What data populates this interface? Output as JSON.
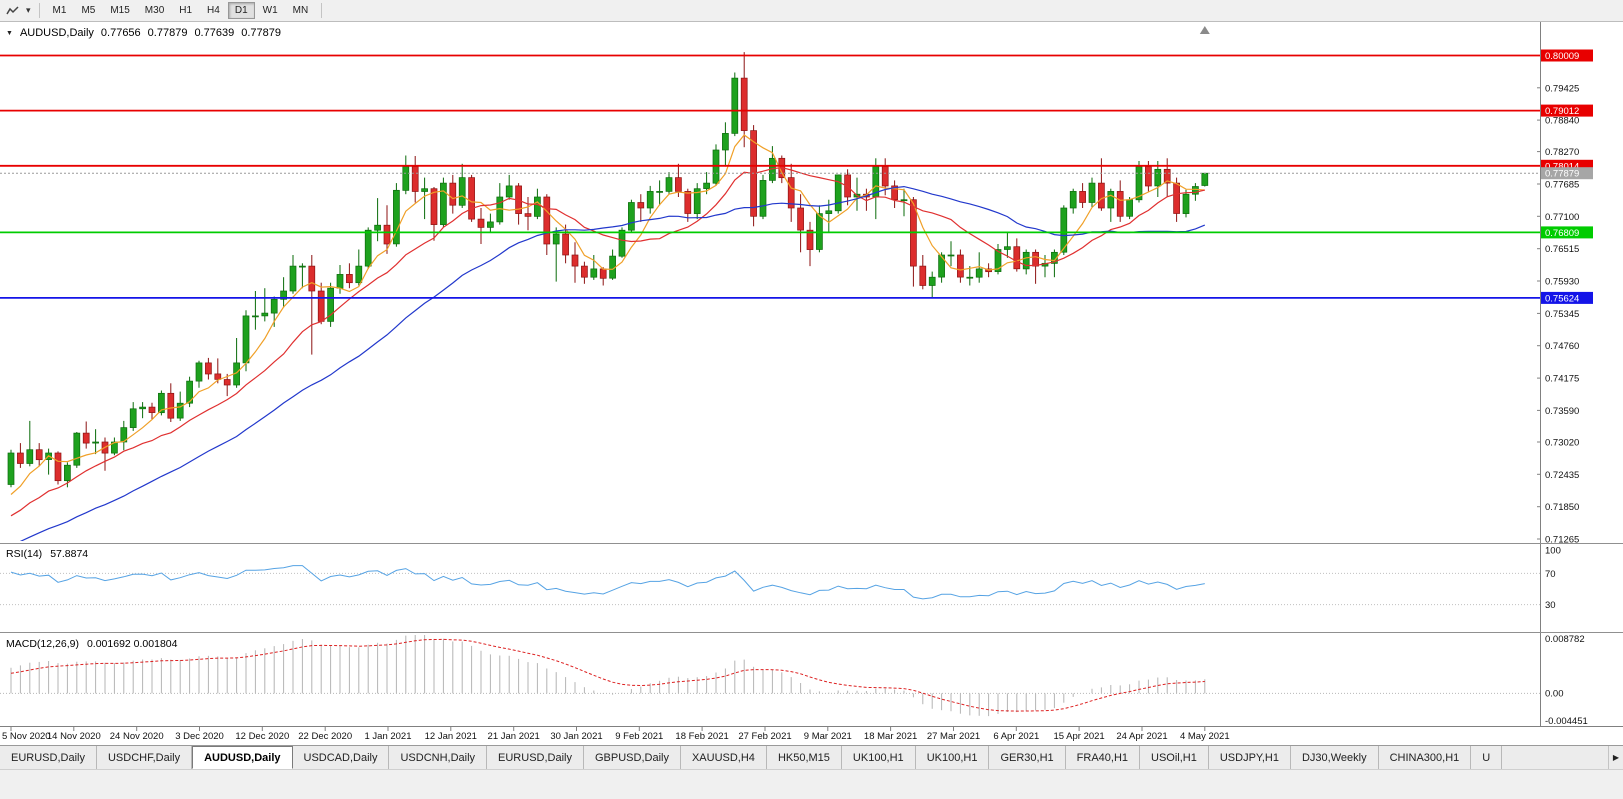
{
  "toolbar": {
    "periods": [
      "M1",
      "M5",
      "M15",
      "M30",
      "H1",
      "H4",
      "D1",
      "W1",
      "MN"
    ],
    "active_period": "D1"
  },
  "chart": {
    "header": {
      "symbol": "AUDUSD,Daily",
      "open": "0.77656",
      "high": "0.77879",
      "low": "0.77639",
      "close": "0.77879"
    }
  },
  "chart_data": {
    "type": "candlestick",
    "symbol": "AUDUSD",
    "timeframe": "Daily",
    "title": "AUDUSD,Daily",
    "last_ohlc": {
      "open": 0.77656,
      "high": 0.77879,
      "low": 0.77639,
      "close": 0.77879
    },
    "y_axis": {
      "min": 0.71247,
      "max": 0.8018,
      "tick_labels": [
        "0.79425",
        "0.78840",
        "0.78270",
        "0.77685",
        "0.77100",
        "0.76515",
        "0.75930",
        "0.75345",
        "0.74760",
        "0.74175",
        "0.73590",
        "0.73020",
        "0.72435",
        "0.71850",
        "0.71265"
      ]
    },
    "x_tick_labels": [
      "5 Nov 2020",
      "14 Nov 2020",
      "24 Nov 2020",
      "3 Dec 2020",
      "12 Dec 2020",
      "22 Dec 2020",
      "1 Jan 2021",
      "12 Jan 2021",
      "21 Jan 2021",
      "30 Jan 2021",
      "9 Feb 2021",
      "18 Feb 2021",
      "27 Feb 2021",
      "9 Mar 2021",
      "18 Mar 2021",
      "27 Mar 2021",
      "6 Apr 2021",
      "15 Apr 2021",
      "24 Apr 2021",
      "4 May 2021"
    ],
    "current_price": {
      "price": 0.77879,
      "label": "0.77879",
      "tag_color": "#a6a6a6",
      "line_color": "#9a9a9a"
    },
    "horizontal_lines": [
      {
        "name": "resistance-1",
        "price": 0.80009,
        "label": "0.80009",
        "color": "#e80000"
      },
      {
        "name": "resistance-2",
        "price": 0.79012,
        "label": "0.79012",
        "color": "#e80000"
      },
      {
        "name": "resistance-3",
        "price": 0.78014,
        "label": "0.78014",
        "color": "#e80000"
      },
      {
        "name": "support-green",
        "price": 0.76809,
        "label": "0.76809",
        "color": "#00cc00"
      },
      {
        "name": "support-blue",
        "price": 0.75624,
        "label": "0.75624",
        "color": "#1414e8"
      }
    ],
    "overlays": {
      "moving_averages": [
        {
          "name": "ma-fast",
          "period": 5,
          "color": "#f0a028"
        },
        {
          "name": "ma-mid",
          "period": 13,
          "color": "#e03030"
        },
        {
          "name": "ma-slow",
          "period": 30,
          "color": "#2238cc"
        }
      ]
    },
    "indicators": [
      {
        "id": "rsi",
        "label": "RSI(14)",
        "value_text": "57.8874",
        "period": 14,
        "levels": [
          100,
          70,
          30
        ],
        "color": "#56a3e4"
      },
      {
        "id": "macd",
        "label": "MACD(12,26,9)",
        "value_text": "0.001692 0.001804",
        "fast": 12,
        "slow": 26,
        "signal": 9,
        "macd_value": 0.001692,
        "signal_value": 0.001804,
        "axis_labels": [
          "0.008782",
          "0.00",
          "-0.004451"
        ],
        "histogram_color": "#b4b4b4",
        "signal_color": "#dd2222"
      }
    ],
    "style": {
      "bull": "#1ea11e",
      "bull_border": "#0a6b0a",
      "bear": "#dc2d2d",
      "bear_border": "#8c1212",
      "background": "#ffffff"
    },
    "bars": [
      [
        0.7225,
        0.7288,
        0.722,
        0.7282
      ],
      [
        0.7282,
        0.73,
        0.7255,
        0.7263
      ],
      [
        0.7263,
        0.734,
        0.7258,
        0.7288
      ],
      [
        0.7288,
        0.73,
        0.7258,
        0.727
      ],
      [
        0.727,
        0.729,
        0.7243,
        0.7282
      ],
      [
        0.7282,
        0.7285,
        0.7225,
        0.7232
      ],
      [
        0.7232,
        0.7265,
        0.722,
        0.726
      ],
      [
        0.726,
        0.732,
        0.7255,
        0.7318
      ],
      [
        0.7318,
        0.7339,
        0.729,
        0.73
      ],
      [
        0.73,
        0.7325,
        0.728,
        0.7302
      ],
      [
        0.7302,
        0.731,
        0.725,
        0.7282
      ],
      [
        0.7282,
        0.731,
        0.7278,
        0.7302
      ],
      [
        0.7302,
        0.734,
        0.7287,
        0.7328
      ],
      [
        0.7328,
        0.7374,
        0.7322,
        0.7362
      ],
      [
        0.7362,
        0.7374,
        0.7345,
        0.7365
      ],
      [
        0.7365,
        0.7373,
        0.7343,
        0.7355
      ],
      [
        0.7355,
        0.7395,
        0.735,
        0.739
      ],
      [
        0.739,
        0.7408,
        0.7338,
        0.7345
      ],
      [
        0.7345,
        0.7393,
        0.734,
        0.7372
      ],
      [
        0.7372,
        0.742,
        0.7365,
        0.7412
      ],
      [
        0.7412,
        0.7449,
        0.74,
        0.7445
      ],
      [
        0.7445,
        0.7454,
        0.7415,
        0.7425
      ],
      [
        0.7425,
        0.7453,
        0.7408,
        0.7415
      ],
      [
        0.7415,
        0.7425,
        0.7385,
        0.7405
      ],
      [
        0.7405,
        0.749,
        0.74,
        0.7445
      ],
      [
        0.7445,
        0.754,
        0.743,
        0.753
      ],
      [
        0.753,
        0.7575,
        0.7505,
        0.753
      ],
      [
        0.753,
        0.758,
        0.752,
        0.7535
      ],
      [
        0.7535,
        0.7565,
        0.751,
        0.756
      ],
      [
        0.756,
        0.76,
        0.7545,
        0.7575
      ],
      [
        0.7575,
        0.764,
        0.757,
        0.762
      ],
      [
        0.762,
        0.7625,
        0.758,
        0.762
      ],
      [
        0.762,
        0.764,
        0.746,
        0.7575
      ],
      [
        0.7575,
        0.759,
        0.7515,
        0.752
      ],
      [
        0.752,
        0.759,
        0.751,
        0.758
      ],
      [
        0.758,
        0.7622,
        0.757,
        0.7605
      ],
      [
        0.7605,
        0.7625,
        0.758,
        0.759
      ],
      [
        0.759,
        0.765,
        0.7585,
        0.762
      ],
      [
        0.762,
        0.769,
        0.7615,
        0.7685
      ],
      [
        0.7685,
        0.7743,
        0.7665,
        0.7694
      ],
      [
        0.7694,
        0.773,
        0.7642,
        0.766
      ],
      [
        0.766,
        0.777,
        0.7655,
        0.7757
      ],
      [
        0.7757,
        0.782,
        0.775,
        0.78
      ],
      [
        0.78,
        0.7819,
        0.7735,
        0.7755
      ],
      [
        0.7755,
        0.778,
        0.7705,
        0.776
      ],
      [
        0.776,
        0.7763,
        0.7666,
        0.7695
      ],
      [
        0.7695,
        0.778,
        0.769,
        0.777
      ],
      [
        0.777,
        0.7785,
        0.7715,
        0.773
      ],
      [
        0.773,
        0.7805,
        0.7725,
        0.778
      ],
      [
        0.778,
        0.7785,
        0.77,
        0.7705
      ],
      [
        0.7705,
        0.7725,
        0.766,
        0.769
      ],
      [
        0.769,
        0.7715,
        0.768,
        0.77
      ],
      [
        0.77,
        0.777,
        0.7695,
        0.7745
      ],
      [
        0.7745,
        0.7785,
        0.774,
        0.7765
      ],
      [
        0.7765,
        0.777,
        0.7695,
        0.7715
      ],
      [
        0.7715,
        0.7745,
        0.7685,
        0.771
      ],
      [
        0.771,
        0.776,
        0.7705,
        0.7745
      ],
      [
        0.7745,
        0.775,
        0.764,
        0.766
      ],
      [
        0.766,
        0.769,
        0.7592,
        0.7678
      ],
      [
        0.7678,
        0.7695,
        0.7625,
        0.764
      ],
      [
        0.764,
        0.7663,
        0.759,
        0.762
      ],
      [
        0.762,
        0.7628,
        0.7588,
        0.76
      ],
      [
        0.76,
        0.764,
        0.7595,
        0.7615
      ],
      [
        0.7615,
        0.7618,
        0.7585,
        0.7598
      ],
      [
        0.7598,
        0.765,
        0.7595,
        0.7638
      ],
      [
        0.7638,
        0.769,
        0.7635,
        0.7685
      ],
      [
        0.7685,
        0.774,
        0.768,
        0.7735
      ],
      [
        0.7735,
        0.775,
        0.77,
        0.7725
      ],
      [
        0.7725,
        0.7765,
        0.7715,
        0.7755
      ],
      [
        0.7755,
        0.7775,
        0.773,
        0.7755
      ],
      [
        0.7755,
        0.779,
        0.775,
        0.778
      ],
      [
        0.778,
        0.7805,
        0.7745,
        0.7755
      ],
      [
        0.7755,
        0.776,
        0.77,
        0.7715
      ],
      [
        0.7715,
        0.777,
        0.7705,
        0.776
      ],
      [
        0.776,
        0.779,
        0.775,
        0.777
      ],
      [
        0.777,
        0.784,
        0.7765,
        0.783
      ],
      [
        0.783,
        0.788,
        0.78,
        0.786
      ],
      [
        0.786,
        0.797,
        0.7855,
        0.796
      ],
      [
        0.796,
        0.8007,
        0.7835,
        0.7865
      ],
      [
        0.7865,
        0.7875,
        0.7692,
        0.771
      ],
      [
        0.771,
        0.7785,
        0.7705,
        0.7775
      ],
      [
        0.7775,
        0.7837,
        0.777,
        0.7815
      ],
      [
        0.7815,
        0.782,
        0.777,
        0.778
      ],
      [
        0.778,
        0.7805,
        0.77,
        0.7725
      ],
      [
        0.7725,
        0.775,
        0.7645,
        0.7685
      ],
      [
        0.7685,
        0.77,
        0.762,
        0.765
      ],
      [
        0.765,
        0.773,
        0.7645,
        0.7715
      ],
      [
        0.7715,
        0.774,
        0.768,
        0.772
      ],
      [
        0.772,
        0.7785,
        0.7715,
        0.7785
      ],
      [
        0.7785,
        0.7795,
        0.773,
        0.7745
      ],
      [
        0.7745,
        0.778,
        0.772,
        0.775
      ],
      [
        0.775,
        0.776,
        0.772,
        0.7745
      ],
      [
        0.7745,
        0.7815,
        0.7705,
        0.78
      ],
      [
        0.78,
        0.7815,
        0.7748,
        0.7765
      ],
      [
        0.7765,
        0.7775,
        0.7725,
        0.774
      ],
      [
        0.774,
        0.776,
        0.771,
        0.774
      ],
      [
        0.774,
        0.7745,
        0.7583,
        0.762
      ],
      [
        0.762,
        0.764,
        0.7578,
        0.7585
      ],
      [
        0.7585,
        0.761,
        0.7563,
        0.76
      ],
      [
        0.76,
        0.7645,
        0.759,
        0.764
      ],
      [
        0.764,
        0.7665,
        0.762,
        0.764
      ],
      [
        0.764,
        0.765,
        0.759,
        0.76
      ],
      [
        0.76,
        0.762,
        0.7585,
        0.76
      ],
      [
        0.76,
        0.7645,
        0.759,
        0.7615
      ],
      [
        0.7615,
        0.7625,
        0.76,
        0.761
      ],
      [
        0.761,
        0.766,
        0.7605,
        0.765
      ],
      [
        0.765,
        0.768,
        0.7635,
        0.7655
      ],
      [
        0.7655,
        0.767,
        0.761,
        0.7615
      ],
      [
        0.7615,
        0.765,
        0.7605,
        0.7645
      ],
      [
        0.7645,
        0.765,
        0.7588,
        0.762
      ],
      [
        0.762,
        0.764,
        0.76,
        0.7625
      ],
      [
        0.7625,
        0.765,
        0.76,
        0.7645
      ],
      [
        0.7645,
        0.773,
        0.764,
        0.7725
      ],
      [
        0.7725,
        0.776,
        0.7715,
        0.7755
      ],
      [
        0.7755,
        0.777,
        0.7725,
        0.7735
      ],
      [
        0.7735,
        0.778,
        0.7725,
        0.777
      ],
      [
        0.777,
        0.7815,
        0.772,
        0.7725
      ],
      [
        0.7725,
        0.776,
        0.77,
        0.7755
      ],
      [
        0.7755,
        0.7775,
        0.77,
        0.771
      ],
      [
        0.771,
        0.7745,
        0.7705,
        0.774
      ],
      [
        0.774,
        0.781,
        0.7735,
        0.78
      ],
      [
        0.78,
        0.781,
        0.7755,
        0.7765
      ],
      [
        0.7765,
        0.781,
        0.7745,
        0.7795
      ],
      [
        0.7795,
        0.7815,
        0.7745,
        0.777
      ],
      [
        0.777,
        0.778,
        0.77,
        0.7715
      ],
      [
        0.7715,
        0.7758,
        0.7708,
        0.775
      ],
      [
        0.775,
        0.777,
        0.7738,
        0.7764
      ],
      [
        0.77656,
        0.77879,
        0.77639,
        0.77879
      ]
    ]
  },
  "tabs": {
    "items": [
      "EURUSD,Daily",
      "USDCHF,Daily",
      "AUDUSD,Daily",
      "USDCAD,Daily",
      "USDCNH,Daily",
      "EURUSD,Daily",
      "GBPUSD,Daily",
      "XAUUSD,H4",
      "HK50,M15",
      "UK100,H1",
      "UK100,H1",
      "GER30,H1",
      "FRA40,H1",
      "USOil,H1",
      "USDJPY,H1",
      "DJ30,Weekly",
      "CHINA300,H1",
      "U"
    ],
    "active_index": 2,
    "scroll_right_icon": "▶"
  }
}
